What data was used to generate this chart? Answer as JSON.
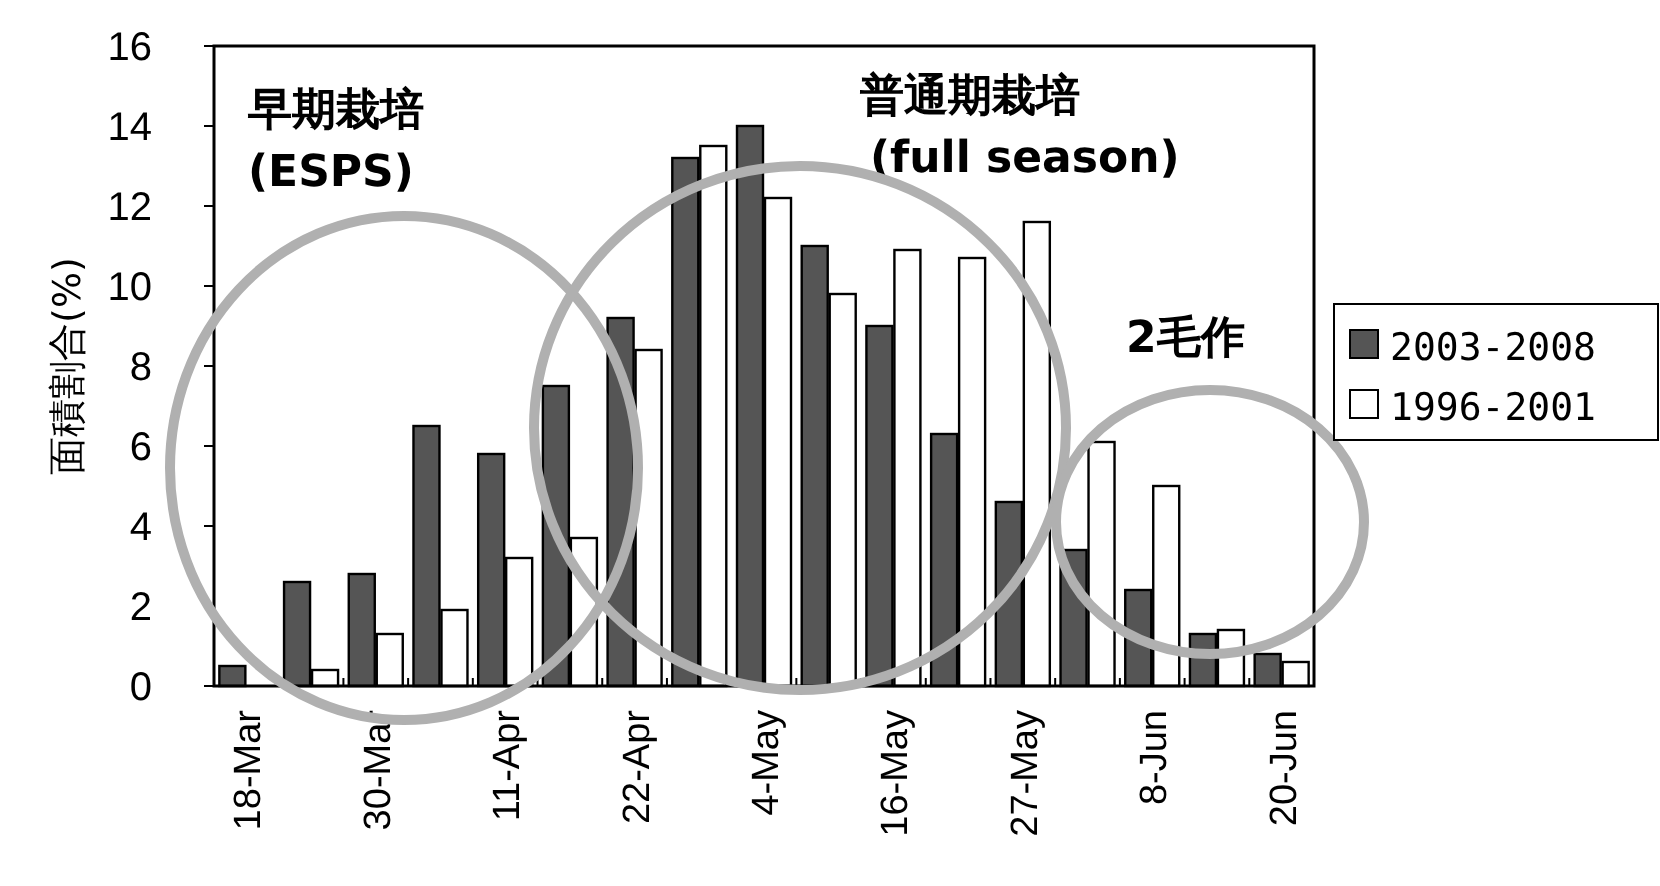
{
  "chart_data": {
    "type": "bar",
    "ylabel": "面積割合(%)",
    "categories": [
      "18-Mar",
      null,
      "30-Mar",
      null,
      "11-Apr",
      null,
      "22-Apr",
      null,
      "4-May",
      null,
      "16-May",
      null,
      "27-May",
      null,
      "8-Jun",
      null,
      "20-Jun"
    ],
    "series": [
      {
        "name": "2003-2008",
        "color": "#555555",
        "values": [
          0.5,
          2.6,
          2.8,
          6.5,
          5.8,
          7.5,
          9.2,
          13.2,
          14.0,
          11.0,
          9.0,
          6.3,
          4.6,
          3.4,
          2.4,
          1.3,
          0.8
        ]
      },
      {
        "name": "1996-2001",
        "color": "#ffffff",
        "values": [
          0,
          0.4,
          1.3,
          1.9,
          3.2,
          3.7,
          8.4,
          13.5,
          12.2,
          9.8,
          10.9,
          10.7,
          11.6,
          6.1,
          5.0,
          1.4,
          0.6
        ]
      }
    ],
    "ylim": [
      0,
      16
    ],
    "yticks": [
      0,
      2,
      4,
      6,
      8,
      10,
      12,
      14,
      16
    ],
    "grid": false,
    "legend": "right",
    "annotations": [
      "早期栽培",
      "(ESPS)",
      "普通期栽培",
      "(full season)",
      "2毛作"
    ]
  }
}
